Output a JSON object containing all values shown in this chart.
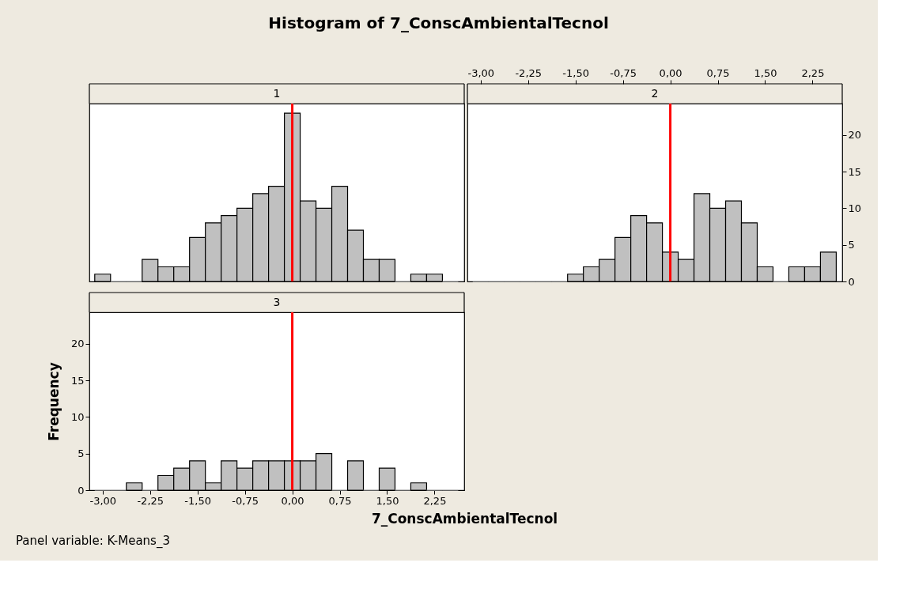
{
  "chart_data": [
    {
      "type": "histogram",
      "title": "Histogram of 7_ConscAmbientalTecnol",
      "subtitle": "1",
      "color": "#c0c0c0",
      "bins": [
        -3.125,
        -2.875,
        -2.625,
        -2.375,
        -2.125,
        -1.875,
        -1.625,
        -1.375,
        -1.125,
        -0.875,
        -0.625,
        -0.375,
        -0.125,
        0.125,
        0.375,
        0.625,
        0.875,
        1.125,
        1.375,
        1.625,
        1.875,
        2.125,
        2.375,
        2.625
      ],
      "values": [
        1,
        0,
        0,
        3,
        2,
        2,
        6,
        8,
        9,
        10,
        12,
        13,
        23,
        11,
        10,
        13,
        7,
        3,
        3,
        0,
        1,
        1,
        0
      ],
      "xlim": [
        -3.21,
        2.72
      ],
      "ylim": [
        0,
        24.3
      ],
      "tick_labels": false,
      "grid": false,
      "yticks": [
        0,
        5,
        10,
        15,
        20
      ],
      "ref_lines": [
        {
          "axis": "x",
          "value": 0,
          "color": "#ff0000"
        }
      ]
    },
    {
      "type": "histogram",
      "subtitle": "2",
      "color": "#c0c0c0",
      "bins": [
        -3.125,
        -2.875,
        -2.625,
        -2.375,
        -2.125,
        -1.875,
        -1.625,
        -1.375,
        -1.125,
        -0.875,
        -0.625,
        -0.375,
        -0.125,
        0.125,
        0.375,
        0.625,
        0.875,
        1.125,
        1.375,
        1.625,
        1.875,
        2.125,
        2.375,
        2.625
      ],
      "values": [
        0,
        0,
        0,
        0,
        0,
        0,
        1,
        2,
        3,
        6,
        9,
        8,
        4,
        3,
        12,
        10,
        11,
        8,
        2,
        0,
        2,
        2,
        4
      ],
      "xlim": [
        -3.21,
        2.72
      ],
      "ylim": [
        0,
        24.3
      ],
      "grid": false,
      "xticks": [
        {
          "value": -3,
          "label": "-3,00"
        },
        {
          "value": -2.25,
          "label": "-2,25"
        },
        {
          "value": -1.5,
          "label": "-1,50"
        },
        {
          "value": -0.75,
          "label": "-0,75"
        },
        {
          "value": 0,
          "label": "0,00"
        },
        {
          "value": 0.75,
          "label": "0,75"
        },
        {
          "value": 1.5,
          "label": "1,50"
        },
        {
          "value": 2.25,
          "label": "2,25"
        }
      ],
      "yticks": [
        0,
        5,
        10,
        15,
        20
      ],
      "ref_lines": [
        {
          "axis": "x",
          "value": 0,
          "color": "#ff0000"
        }
      ]
    },
    {
      "type": "histogram",
      "subtitle": "3",
      "color": "#c0c0c0",
      "xlabel": "7_ConscAmbientalTecnol",
      "ylabel": "Frequency",
      "annotations": [
        "Panel variable: K-Means_3"
      ],
      "bins": [
        -3.125,
        -2.875,
        -2.625,
        -2.375,
        -2.125,
        -1.875,
        -1.625,
        -1.375,
        -1.125,
        -0.875,
        -0.625,
        -0.375,
        -0.125,
        0.125,
        0.375,
        0.625,
        0.875,
        1.125,
        1.375,
        1.625,
        1.875,
        2.125,
        2.375,
        2.625
      ],
      "values": [
        0,
        0,
        1,
        0,
        2,
        3,
        4,
        1,
        4,
        3,
        4,
        4,
        4,
        4,
        5,
        0,
        4,
        0,
        3,
        0,
        1,
        0,
        0
      ],
      "xlim": [
        -3.21,
        2.72
      ],
      "ylim": [
        0,
        24.3
      ],
      "grid": false,
      "xticks": [
        {
          "value": -3,
          "label": "-3,00"
        },
        {
          "value": -2.25,
          "label": "-2,25"
        },
        {
          "value": -1.5,
          "label": "-1,50"
        },
        {
          "value": -0.75,
          "label": "-0,75"
        },
        {
          "value": 0,
          "label": "0,00"
        },
        {
          "value": 0.75,
          "label": "0,75"
        },
        {
          "value": 1.5,
          "label": "1,50"
        },
        {
          "value": 2.25,
          "label": "2,25"
        }
      ],
      "yticks": [
        0,
        5,
        10,
        15,
        20
      ],
      "ref_lines": [
        {
          "axis": "x",
          "value": 0,
          "color": "#ff0000"
        }
      ]
    }
  ]
}
